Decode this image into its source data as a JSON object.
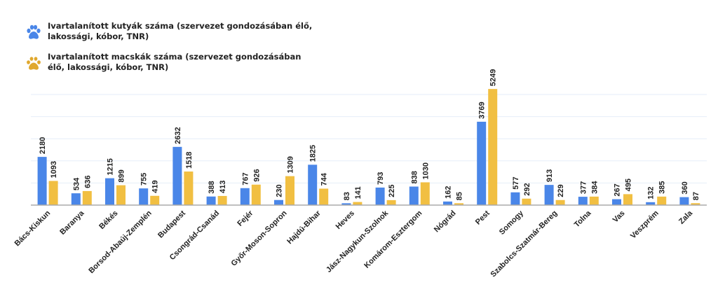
{
  "chart_data": {
    "type": "bar",
    "title": "",
    "xlabel": "",
    "ylabel": "",
    "ylim": [
      0,
      5000
    ],
    "grid": true,
    "legend_position": "top-left",
    "categories": [
      "Bács-Kiskun",
      "Baranya",
      "Békés",
      "Borsod-Abaúj-Zemplén",
      "Budapest",
      "Csongrád-Csanád",
      "Fejér",
      "Győr-Moson-Sopron",
      "Hajdú-Bihar",
      "Heves",
      "Jász-Nagykun-Szolnok",
      "Komárom-Esztergom",
      "Nógrád",
      "Pest",
      "Somogy",
      "Szabolcs-Szatmár-Bereg",
      "Tolna",
      "Vas",
      "Veszprém",
      "Zala"
    ],
    "series": [
      {
        "name": "Ivartalanított kutyák száma (szervezet gondozásában élő, lakossági, kóbor, TNR)",
        "color": "#4a86e8",
        "icon": "dog-paw-icon",
        "values": [
          2180,
          534,
          1215,
          755,
          2632,
          388,
          767,
          230,
          1825,
          83,
          793,
          838,
          162,
          3769,
          577,
          913,
          377,
          267,
          132,
          360
        ]
      },
      {
        "name": "Ivartalanított macskák száma (szervezet gondozásában élő, lakossági, kóbor, TNR)",
        "color": "#f1bf42",
        "icon": "cat-paw-icon",
        "values": [
          1093,
          636,
          899,
          419,
          1518,
          413,
          926,
          1309,
          744,
          141,
          225,
          1030,
          85,
          5249,
          292,
          229,
          384,
          495,
          385,
          87
        ]
      }
    ]
  }
}
